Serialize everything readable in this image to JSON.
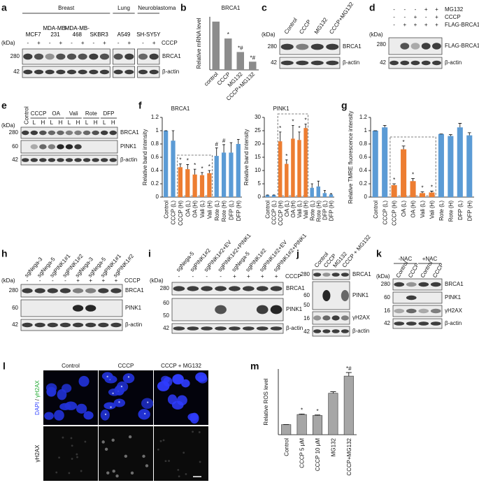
{
  "panel_letters": [
    "a",
    "b",
    "c",
    "d",
    "e",
    "f",
    "g",
    "h",
    "i",
    "j",
    "k",
    "l",
    "m"
  ],
  "chart_data": [
    {
      "type": "bar",
      "title": "BRCA1",
      "y_label": "Relative mRNA level",
      "categories": [
        "control",
        "CCCP",
        "MG132",
        "CCCP+MG132"
      ],
      "values": [
        1,
        0.65,
        0.37,
        0.17
      ],
      "annotations": [
        null,
        "*",
        "*#",
        "*#"
      ],
      "color": "#8c8c8c",
      "ylim": [
        0,
        1.1
      ]
    },
    {
      "type": "bar",
      "title": "BRCA1",
      "y_label": "Relative band intensity",
      "categories": [
        "Control",
        "CCCP (L)",
        "CCCP (H)",
        "OA (L)",
        "OA (H)",
        "Vali (L)",
        "Vali (H)",
        "Rote (L)",
        "Rote (H)",
        "DFP (L)",
        "DFP (H)"
      ],
      "values": [
        1,
        0.85,
        0.45,
        0.42,
        0.34,
        0.33,
        0.36,
        0.62,
        0.67,
        0.67,
        0.8
      ],
      "errors": [
        0,
        0.15,
        0.05,
        0.07,
        0.08,
        0.04,
        0.04,
        0.12,
        0.12,
        0.15,
        0.07
      ],
      "annotations": [
        null,
        null,
        "*",
        "*",
        "*",
        "*",
        "*",
        "#",
        "#",
        null,
        null
      ],
      "colors": [
        "#5b9bd5",
        "#5b9bd5",
        "#ed7d31",
        "#ed7d31",
        "#ed7d31",
        "#ed7d31",
        "#ed7d31",
        "#5b9bd5",
        "#5b9bd5",
        "#5b9bd5",
        "#5b9bd5"
      ],
      "ylim": [
        0,
        1.2
      ],
      "yticks": [
        0,
        0.2,
        0.4,
        0.6,
        0.8,
        1,
        1.2
      ]
    },
    {
      "type": "bar",
      "title": "PINK1",
      "y_label": "Relative band intensity",
      "categories": [
        "Control",
        "CCCP (L)",
        "CCCP (H)",
        "OA (L)",
        "OA (H)",
        "Vali (L)",
        "Vali (H)",
        "Rote (L)",
        "Rote (H)",
        "DFP (L)",
        "DFP (H)"
      ],
      "values": [
        0.8,
        0.8,
        21,
        12.5,
        22,
        21.5,
        26,
        3.5,
        4,
        1.5,
        1
      ],
      "errors": [
        0,
        0,
        3.5,
        1.5,
        5,
        3,
        1.5,
        1.5,
        2,
        1,
        0.3
      ],
      "annotations": [
        null,
        null,
        "*",
        "*",
        "*",
        "*",
        "*",
        null,
        null,
        null,
        null
      ],
      "colors": [
        "#5b9bd5",
        "#5b9bd5",
        "#ed7d31",
        "#ed7d31",
        "#ed7d31",
        "#ed7d31",
        "#ed7d31",
        "#5b9bd5",
        "#5b9bd5",
        "#5b9bd5",
        "#5b9bd5"
      ],
      "ylim": [
        0,
        30
      ],
      "yticks": [
        0,
        5,
        10,
        15,
        20,
        25,
        30
      ]
    },
    {
      "type": "bar",
      "y_label": "Relative TMRE fluorescence intensity",
      "categories": [
        "Control",
        "CCCP (L)",
        "CCCP (H)",
        "OA (L)",
        "OA (H)",
        "Vali (L)",
        "Vali (H)",
        "Rote (L)",
        "Rote (H)",
        "DFP (L)",
        "DFP (H)"
      ],
      "values": [
        1,
        1.05,
        0.18,
        0.72,
        0.24,
        0.06,
        0.07,
        0.95,
        0.92,
        1.05,
        0.93
      ],
      "errors": [
        0,
        0.03,
        0.02,
        0.05,
        0.04,
        0.02,
        0.02,
        0,
        0.02,
        0.06,
        0.04
      ],
      "annotations": [
        null,
        null,
        "*",
        "*",
        "*",
        "*",
        "*",
        null,
        null,
        null,
        null
      ],
      "colors": [
        "#5b9bd5",
        "#5b9bd5",
        "#ed7d31",
        "#ed7d31",
        "#ed7d31",
        "#ed7d31",
        "#ed7d31",
        "#5b9bd5",
        "#5b9bd5",
        "#5b9bd5",
        "#5b9bd5"
      ],
      "ylim": [
        0,
        1.2
      ],
      "yticks": [
        0,
        0.2,
        0.4,
        0.6,
        0.8,
        1,
        1.2
      ]
    },
    {
      "type": "bar",
      "y_label": "Relative ROS level",
      "categories": [
        "Control",
        "CCCP 5 μM",
        "CCCP 10 μM",
        "MG132",
        "CCCP+MG132"
      ],
      "values": [
        1,
        2,
        1.9,
        4.1,
        5.8
      ],
      "errors": [
        0,
        0.05,
        0.05,
        0.15,
        0.35
      ],
      "annotations": [
        null,
        "*",
        "*",
        null,
        "*#"
      ],
      "color": "#a6a6a6",
      "ylim": [
        0,
        6.5
      ]
    }
  ],
  "blots": {
    "a": {
      "groups": [
        {
          "name": "Breast",
          "cells": [
            "MCF7",
            "MDA-MB-231",
            "MDA-MB-468",
            "SKBR3"
          ]
        },
        {
          "name": "Lung",
          "cells": [
            "A549"
          ]
        },
        {
          "name": "Neuroblastoma",
          "cells": [
            "SH-SY5Y"
          ]
        }
      ],
      "kda": "(kDa)",
      "treatments": [
        {
          "name": "CCCP",
          "signs": [
            "-",
            "+",
            "-",
            "+",
            "-",
            "+",
            "-",
            "+",
            "-",
            "+",
            "-",
            "+"
          ]
        }
      ],
      "bands": [
        {
          "name": "BRCA1",
          "markers": [
            "280"
          ]
        },
        {
          "name": "β-actin",
          "markers": [
            "42"
          ]
        }
      ]
    },
    "c": {
      "kda": "(kDa)",
      "lanes": [
        "Control",
        "CCCP",
        "MG132",
        "CCCP+MG132"
      ],
      "bands": [
        {
          "name": "BRCA1",
          "markers": [
            "280"
          ]
        },
        {
          "name": "β-actin",
          "markers": [
            "42"
          ]
        }
      ]
    },
    "d": {
      "kda": "(kDa)",
      "treatments": [
        {
          "name": "MG132",
          "signs": [
            "-",
            "-",
            "-",
            "+",
            "+"
          ]
        },
        {
          "name": "CCCP",
          "signs": [
            "-",
            "-",
            "+",
            "-",
            "+"
          ]
        },
        {
          "name": "FLAG-BRCA1",
          "signs": [
            "-",
            "+",
            "+",
            "+",
            "+"
          ]
        }
      ],
      "bands": [
        {
          "name": "FLAG-BRCA1",
          "markers": [
            "280"
          ]
        },
        {
          "name": "β-actin",
          "markers": [
            "42"
          ]
        }
      ]
    },
    "e": {
      "kda": "(kDa)",
      "control": "Control",
      "groups": [
        {
          "name": "CCCP",
          "lanes": [
            "L",
            "H"
          ]
        },
        {
          "name": "OA",
          "lanes": [
            "L",
            "H"
          ]
        },
        {
          "name": "Vali",
          "lanes": [
            "L",
            "H"
          ]
        },
        {
          "name": "Rote",
          "lanes": [
            "L",
            "H"
          ]
        },
        {
          "name": "DFP",
          "lanes": [
            "L",
            "H"
          ]
        }
      ],
      "bands": [
        {
          "name": "BRCA1",
          "markers": [
            "280"
          ]
        },
        {
          "name": "PINK1",
          "markers": [
            "60"
          ]
        },
        {
          "name": "β-actin",
          "markers": [
            "42"
          ]
        }
      ]
    },
    "h": {
      "kda": "(kDa)",
      "lanes": [
        "sgNega-3",
        "sgNega-5",
        "sgPINK1#1",
        "sgPINK1#2",
        "sgNega-3",
        "sgNega-5",
        "sgPINK1#1",
        "sgPINK1#2"
      ],
      "treatments": [
        {
          "name": "CCCP",
          "signs": [
            "-",
            "-",
            "-",
            "-",
            "+",
            "+",
            "+",
            "+"
          ]
        }
      ],
      "bands": [
        {
          "name": "BRCA1",
          "markers": [
            "280"
          ]
        },
        {
          "name": "PINK1",
          "markers": [
            "60"
          ]
        },
        {
          "name": "β-actin",
          "markers": [
            "42"
          ]
        }
      ]
    },
    "i": {
      "kda": "(kDa)",
      "lanes": [
        "sgNega-5",
        "sgPINK1#2",
        "sgPINK1#2+EV",
        "sgPINK1#2+PINK1",
        "sgNega-5",
        "sgPINK1#2",
        "sgPINK1#2+EV",
        "sgPINK1#2+PINK1"
      ],
      "treatments": [
        {
          "name": "CCCP",
          "signs": [
            "-",
            "-",
            "-",
            "-",
            "+",
            "+",
            "+",
            "+"
          ]
        }
      ],
      "bands": [
        {
          "name": "BRCA1",
          "markers": [
            "280"
          ]
        },
        {
          "name": "PINK1",
          "markers": [
            "60",
            "50"
          ]
        },
        {
          "name": "β-actin",
          "markers": [
            "42"
          ]
        }
      ]
    },
    "j": {
      "lanes": [
        "Control",
        "CCCP",
        "MG132",
        "CCCP + MG132"
      ],
      "bands": [
        {
          "name": "BRCA1",
          "markers": [
            "280"
          ]
        },
        {
          "name": "PINK1",
          "markers": [
            "60",
            "50"
          ]
        },
        {
          "name": "γH2AX",
          "markers": [
            "16"
          ]
        },
        {
          "name": "β-actin",
          "markers": [
            "42"
          ]
        }
      ]
    },
    "k": {
      "kda": "(kDa)",
      "groups": [
        {
          "name": "-NAC",
          "lanes": [
            "Control",
            "CCCP"
          ]
        },
        {
          "name": "+NAC",
          "lanes": [
            "Control",
            "CCCP"
          ]
        }
      ],
      "bands": [
        {
          "name": "BRCA1",
          "markers": [
            "280"
          ]
        },
        {
          "name": "PINK1",
          "markers": [
            "60"
          ]
        },
        {
          "name": "γH2AX",
          "markers": [
            "16"
          ]
        },
        {
          "name": "β-actin",
          "markers": [
            "42"
          ]
        }
      ]
    }
  },
  "imaging": {
    "columns": [
      "Control",
      "CCCP",
      "CCCP + MG132"
    ],
    "row_labels": [
      [
        "DAPI",
        "/",
        "γH2AX"
      ],
      [
        "γH2AX"
      ]
    ]
  }
}
